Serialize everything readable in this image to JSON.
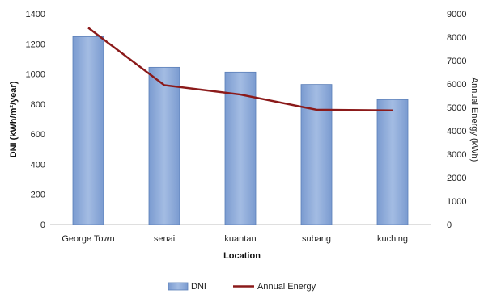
{
  "chart_data": {
    "type": "bar",
    "categories": [
      "George Town",
      "senai",
      "kuantan",
      "subang",
      "kuching"
    ],
    "series": [
      {
        "name": "DNI",
        "type": "bar",
        "axis": "left",
        "values": [
          1248,
          1044,
          1012,
          930,
          830
        ]
      },
      {
        "name": "Annual Energy",
        "type": "line",
        "axis": "right",
        "values": [
          8400,
          5950,
          5550,
          4900,
          4870
        ]
      }
    ],
    "xlabel": "Location",
    "ylabel": "DNI (kWh/m²/year)",
    "y2label": "Annual Energy (kWh)",
    "ylim": [
      0,
      1400
    ],
    "y2lim": [
      0,
      9000
    ],
    "yticks": [
      "0",
      "200",
      "400",
      "600",
      "800",
      "1000",
      "1200",
      "1400"
    ],
    "y2ticks": [
      "0",
      "1000",
      "2000",
      "3000",
      "4000",
      "5000",
      "6000",
      "7000",
      "8000",
      "9000"
    ],
    "grid": false,
    "legend": "bottom",
    "colors": {
      "bar_fill": "#8eaadb",
      "bar_stroke": "#5b7fb8",
      "line": "#8b1a1a",
      "axis": "#bfbfbf"
    }
  }
}
